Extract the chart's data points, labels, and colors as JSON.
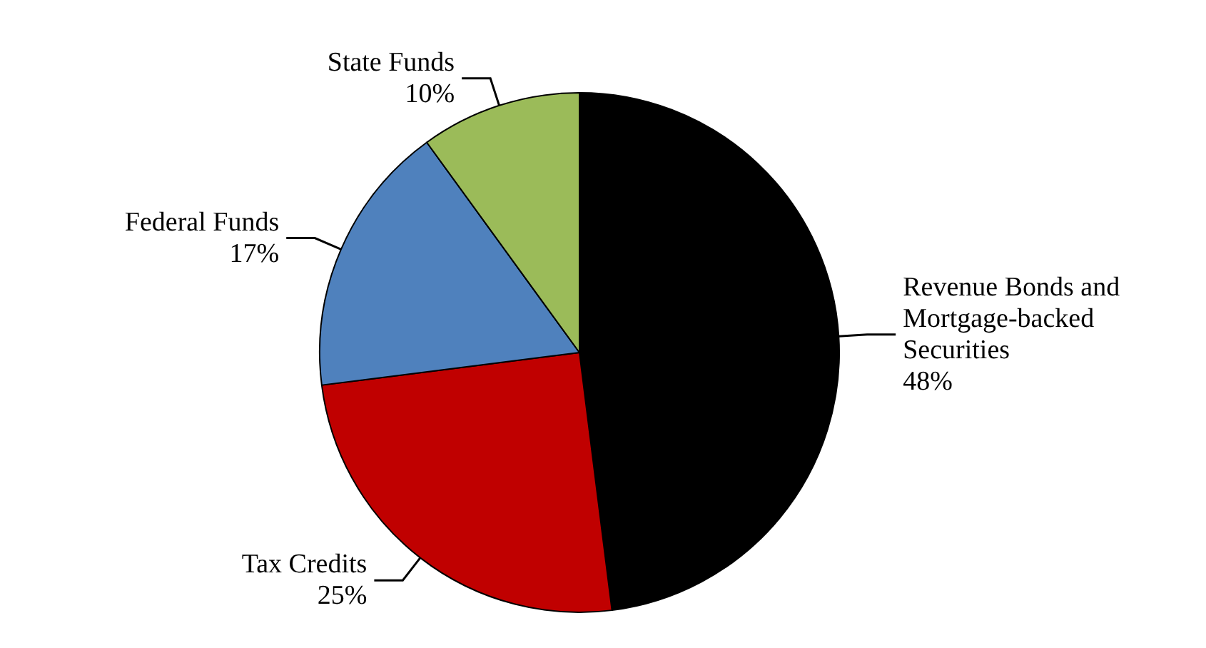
{
  "chart_data": {
    "type": "pie",
    "categories": [
      "Revenue Bonds and Mortgage-backed Securities",
      "Tax Credits",
      "Federal Funds",
      "State Funds"
    ],
    "values": [
      48,
      25,
      17,
      10
    ],
    "value_labels": [
      "48%",
      "25%",
      "17%",
      "10%"
    ],
    "colors": [
      "#000000",
      "#c00000",
      "#4f81bd",
      "#9bbb59"
    ],
    "legend": false
  }
}
